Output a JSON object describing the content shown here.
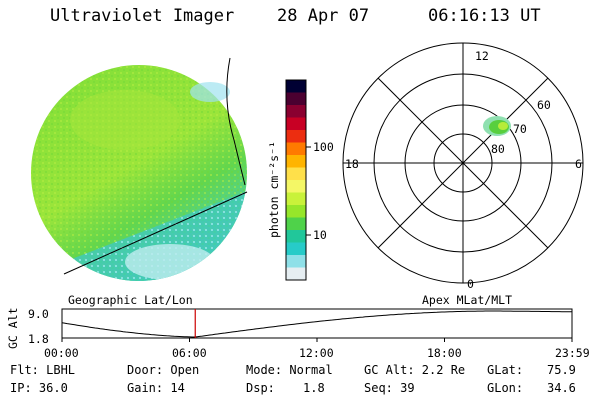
{
  "header": {
    "instrument": "Ultraviolet Imager",
    "date": "28 Apr 07",
    "time": "06:16:13 UT"
  },
  "colorbar": {
    "unit": "photon cm⁻²s⁻¹",
    "ticks": [
      "100",
      "10"
    ],
    "colors": [
      "#000033",
      "#4b0030",
      "#8a0030",
      "#c80024",
      "#ec2d10",
      "#ff7a00",
      "#ffb400",
      "#ffe04a",
      "#f4f766",
      "#c9f23a",
      "#96e62a",
      "#4fd24a",
      "#21c79a",
      "#27cbc8",
      "#8fe0e8",
      "#e6eef2"
    ]
  },
  "polar": {
    "mlt_labels": {
      "top": "12",
      "left": "18",
      "right": "6",
      "bottom": "0"
    },
    "lat_labels": [
      "60",
      "70",
      "80"
    ]
  },
  "timeline": {
    "left_title": "Geographic Lat/Lon",
    "right_title": "Apex MLat/MLT",
    "axis_label": "GC Alt",
    "y_max": "9.0",
    "y_min": "1.8",
    "x_ticks": [
      "00:00",
      "06:00",
      "12:00",
      "18:00",
      "23:59"
    ],
    "marker_hour": 6.27
  },
  "info": {
    "flt": "Flt: LBHL",
    "ip": "IP: 36.0",
    "door": "Door: Open",
    "gain": "Gain: 14",
    "mode": "Mode: Normal",
    "dsp_label": "Dsp:",
    "dsp_value": "1.8",
    "gc_alt": "GC Alt: 2.2 Re",
    "seq": "Seq: 39",
    "glat_label": "GLat:",
    "glat_value": "75.9",
    "glon_label": "GLon:",
    "glon_value": "34.6"
  }
}
